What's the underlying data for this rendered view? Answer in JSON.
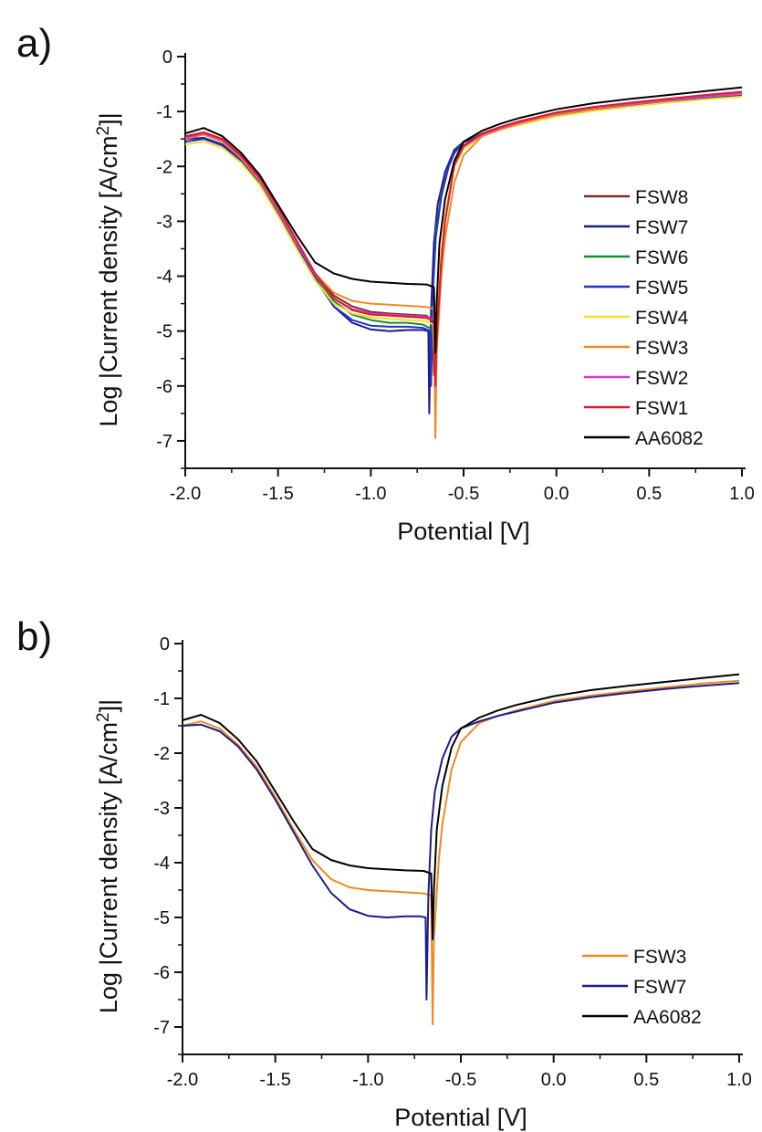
{
  "chart_data": [
    {
      "panel_label": "a)",
      "type": "line",
      "xlabel": "Potential [V]",
      "ylabel_prefix": "Log |Current density [A/cm",
      "ylabel_sup": "2",
      "ylabel_suffix": "]|",
      "xlim": [
        -2.0,
        1.0
      ],
      "ylim": [
        -7.5,
        0
      ],
      "x_ticks": [
        -2.0,
        -1.5,
        -1.0,
        -0.5,
        0.0,
        0.5,
        1.0
      ],
      "x_tick_labels": [
        "-2.0",
        "-1.5",
        "-1.0",
        "-0.5",
        "0.0",
        "0.5",
        "1.0"
      ],
      "y_ticks": [
        0,
        -1,
        -2,
        -3,
        -4,
        -5,
        -6,
        -7
      ],
      "y_tick_labels": [
        "0",
        "-1",
        "-2",
        "-3",
        "-4",
        "-5",
        "-6",
        "-7"
      ],
      "grid": false,
      "legend_position": "right",
      "series": [
        {
          "name": "FSW8",
          "color": "#7a2e2e",
          "x": [
            -2.0,
            -1.9,
            -1.8,
            -1.7,
            -1.6,
            -1.5,
            -1.4,
            -1.3,
            -1.2,
            -1.1,
            -1.0,
            -0.9,
            -0.8,
            -0.7,
            -0.668,
            -0.66,
            -0.65,
            -0.62,
            -0.6,
            -0.55,
            -0.5,
            -0.4,
            -0.3,
            -0.2,
            0.0,
            0.2,
            0.4,
            0.6,
            0.8,
            1.0
          ],
          "y": [
            -1.45,
            -1.38,
            -1.5,
            -1.8,
            -2.2,
            -2.75,
            -3.35,
            -3.95,
            -4.35,
            -4.55,
            -4.65,
            -4.68,
            -4.7,
            -4.72,
            -4.8,
            -5.8,
            -5.5,
            -3.8,
            -3.0,
            -1.95,
            -1.62,
            -1.4,
            -1.28,
            -1.18,
            -1.02,
            -0.92,
            -0.85,
            -0.78,
            -0.72,
            -0.66
          ]
        },
        {
          "name": "FSW7",
          "color": "#1c1c8a",
          "x": [
            -2.0,
            -1.9,
            -1.8,
            -1.7,
            -1.6,
            -1.5,
            -1.4,
            -1.3,
            -1.2,
            -1.1,
            -1.0,
            -0.9,
            -0.8,
            -0.72,
            -0.69,
            -0.685,
            -0.675,
            -0.66,
            -0.64,
            -0.6,
            -0.55,
            -0.5,
            -0.4,
            -0.3,
            -0.2,
            0.0,
            0.2,
            0.4,
            0.6,
            0.8,
            1.0
          ],
          "y": [
            -1.5,
            -1.48,
            -1.6,
            -1.88,
            -2.3,
            -2.85,
            -3.45,
            -4.05,
            -4.55,
            -4.85,
            -4.97,
            -5.0,
            -4.98,
            -4.98,
            -5.0,
            -6.5,
            -4.6,
            -3.4,
            -2.7,
            -2.1,
            -1.7,
            -1.55,
            -1.42,
            -1.32,
            -1.24,
            -1.08,
            -0.98,
            -0.9,
            -0.83,
            -0.77,
            -0.72
          ]
        },
        {
          "name": "FSW6",
          "color": "#1f8a2a",
          "x": [
            -2.0,
            -1.9,
            -1.8,
            -1.7,
            -1.6,
            -1.5,
            -1.4,
            -1.3,
            -1.2,
            -1.1,
            -1.0,
            -0.9,
            -0.8,
            -0.72,
            -0.68,
            -0.675,
            -0.67,
            -0.65,
            -0.62,
            -0.58,
            -0.55,
            -0.5,
            -0.4,
            -0.3,
            -0.2,
            0.0,
            0.2,
            0.4,
            0.6,
            0.8,
            1.0
          ],
          "y": [
            -1.48,
            -1.42,
            -1.55,
            -1.84,
            -2.25,
            -2.8,
            -3.4,
            -4.0,
            -4.45,
            -4.7,
            -4.8,
            -4.85,
            -4.85,
            -4.88,
            -4.95,
            -5.95,
            -4.6,
            -3.2,
            -2.5,
            -2.0,
            -1.75,
            -1.55,
            -1.4,
            -1.3,
            -1.22,
            -1.06,
            -0.96,
            -0.88,
            -0.81,
            -0.75,
            -0.7
          ]
        },
        {
          "name": "FSW5",
          "color": "#2330c8",
          "x": [
            -2.0,
            -1.9,
            -1.8,
            -1.7,
            -1.6,
            -1.5,
            -1.4,
            -1.3,
            -1.2,
            -1.1,
            -1.0,
            -0.9,
            -0.8,
            -0.72,
            -0.68,
            -0.675,
            -0.67,
            -0.65,
            -0.62,
            -0.58,
            -0.55,
            -0.5,
            -0.4,
            -0.3,
            -0.2,
            0.0,
            0.2,
            0.4,
            0.6,
            0.8,
            1.0
          ],
          "y": [
            -1.55,
            -1.5,
            -1.62,
            -1.9,
            -2.3,
            -2.85,
            -3.45,
            -4.05,
            -4.55,
            -4.8,
            -4.9,
            -4.92,
            -4.92,
            -4.94,
            -5.0,
            -6.0,
            -4.6,
            -3.3,
            -2.55,
            -2.0,
            -1.76,
            -1.56,
            -1.42,
            -1.32,
            -1.24,
            -1.08,
            -0.98,
            -0.9,
            -0.83,
            -0.77,
            -0.72
          ]
        },
        {
          "name": "FSW4",
          "color": "#f2e02a",
          "x": [
            -2.0,
            -1.9,
            -1.8,
            -1.7,
            -1.6,
            -1.5,
            -1.4,
            -1.3,
            -1.2,
            -1.1,
            -1.0,
            -0.9,
            -0.8,
            -0.7,
            -0.665,
            -0.655,
            -0.645,
            -0.62,
            -0.6,
            -0.55,
            -0.5,
            -0.4,
            -0.3,
            -0.2,
            0.0,
            0.2,
            0.4,
            0.6,
            0.8,
            1.0
          ],
          "y": [
            -1.6,
            -1.55,
            -1.66,
            -1.93,
            -2.33,
            -2.9,
            -3.5,
            -4.08,
            -4.5,
            -4.68,
            -4.75,
            -4.78,
            -4.8,
            -4.82,
            -4.88,
            -5.6,
            -5.0,
            -3.6,
            -2.9,
            -2.0,
            -1.68,
            -1.45,
            -1.33,
            -1.24,
            -1.09,
            -0.99,
            -0.91,
            -0.84,
            -0.78,
            -0.73
          ]
        },
        {
          "name": "FSW3",
          "color": "#f08a20",
          "x": [
            -2.0,
            -1.9,
            -1.8,
            -1.7,
            -1.6,
            -1.5,
            -1.4,
            -1.3,
            -1.2,
            -1.1,
            -1.0,
            -0.9,
            -0.8,
            -0.7,
            -0.66,
            -0.652,
            -0.645,
            -0.62,
            -0.6,
            -0.55,
            -0.5,
            -0.4,
            -0.3,
            -0.2,
            0.0,
            0.2,
            0.4,
            0.6,
            0.8,
            1.0
          ],
          "y": [
            -1.5,
            -1.42,
            -1.55,
            -1.85,
            -2.25,
            -2.8,
            -3.4,
            -3.95,
            -4.3,
            -4.45,
            -4.5,
            -4.52,
            -4.54,
            -4.56,
            -4.6,
            -6.95,
            -5.4,
            -4.0,
            -3.3,
            -2.3,
            -1.8,
            -1.45,
            -1.32,
            -1.22,
            -1.05,
            -0.95,
            -0.87,
            -0.8,
            -0.73,
            -0.68
          ]
        },
        {
          "name": "FSW2",
          "color": "#d63ad0",
          "x": [
            -2.0,
            -1.9,
            -1.8,
            -1.7,
            -1.6,
            -1.5,
            -1.4,
            -1.3,
            -1.2,
            -1.1,
            -1.0,
            -0.9,
            -0.8,
            -0.7,
            -0.66,
            -0.652,
            -0.645,
            -0.62,
            -0.6,
            -0.55,
            -0.5,
            -0.4,
            -0.3,
            -0.2,
            0.0,
            0.2,
            0.4,
            0.6,
            0.8,
            1.0
          ],
          "y": [
            -1.48,
            -1.4,
            -1.52,
            -1.82,
            -2.22,
            -2.78,
            -3.38,
            -3.98,
            -4.4,
            -4.6,
            -4.68,
            -4.7,
            -4.72,
            -4.74,
            -4.8,
            -5.6,
            -5.1,
            -3.7,
            -3.0,
            -1.98,
            -1.64,
            -1.42,
            -1.3,
            -1.2,
            -1.03,
            -0.93,
            -0.86,
            -0.79,
            -0.73,
            -0.67
          ]
        },
        {
          "name": "FSW1",
          "color": "#e21b2a",
          "x": [
            -2.0,
            -1.9,
            -1.8,
            -1.7,
            -1.6,
            -1.5,
            -1.4,
            -1.3,
            -1.2,
            -1.1,
            -1.0,
            -0.9,
            -0.8,
            -0.7,
            -0.66,
            -0.652,
            -0.645,
            -0.62,
            -0.6,
            -0.55,
            -0.5,
            -0.4,
            -0.3,
            -0.2,
            0.0,
            0.2,
            0.4,
            0.6,
            0.8,
            1.0
          ],
          "y": [
            -1.46,
            -1.38,
            -1.5,
            -1.8,
            -2.2,
            -2.75,
            -3.35,
            -3.95,
            -4.4,
            -4.62,
            -4.7,
            -4.72,
            -4.74,
            -4.76,
            -4.82,
            -6.0,
            -5.2,
            -3.7,
            -3.0,
            -1.98,
            -1.63,
            -1.4,
            -1.28,
            -1.18,
            -1.02,
            -0.92,
            -0.84,
            -0.77,
            -0.7,
            -0.64
          ]
        },
        {
          "name": "AA6082",
          "color": "#000000",
          "x": [
            -2.0,
            -1.9,
            -1.8,
            -1.7,
            -1.6,
            -1.5,
            -1.4,
            -1.3,
            -1.2,
            -1.1,
            -1.0,
            -0.9,
            -0.8,
            -0.7,
            -0.66,
            -0.652,
            -0.645,
            -0.63,
            -0.6,
            -0.55,
            -0.5,
            -0.4,
            -0.3,
            -0.2,
            0.0,
            0.2,
            0.4,
            0.6,
            0.8,
            1.0
          ],
          "y": [
            -1.4,
            -1.3,
            -1.45,
            -1.75,
            -2.15,
            -2.7,
            -3.25,
            -3.75,
            -3.95,
            -4.05,
            -4.1,
            -4.12,
            -4.14,
            -4.15,
            -4.2,
            -5.4,
            -4.5,
            -3.4,
            -2.6,
            -1.9,
            -1.55,
            -1.35,
            -1.22,
            -1.12,
            -0.96,
            -0.85,
            -0.77,
            -0.7,
            -0.63,
            -0.56
          ]
        }
      ]
    },
    {
      "panel_label": "b)",
      "type": "line",
      "xlabel": "Potential [V]",
      "ylabel_prefix": "Log |Current density [A/cm",
      "ylabel_sup": "2",
      "ylabel_suffix": "]|",
      "xlim": [
        -2.0,
        1.0
      ],
      "ylim": [
        -7.5,
        0
      ],
      "x_ticks": [
        -2.0,
        -1.5,
        -1.0,
        -0.5,
        0.0,
        0.5,
        1.0
      ],
      "x_tick_labels": [
        "-2.0",
        "-1.5",
        "-1.0",
        "-0.5",
        "0.0",
        "0.5",
        "1.0"
      ],
      "y_ticks": [
        0,
        -1,
        -2,
        -3,
        -4,
        -5,
        -6,
        -7
      ],
      "y_tick_labels": [
        "0",
        "-1",
        "-2",
        "-3",
        "-4",
        "-5",
        "-6",
        "-7"
      ],
      "grid": false,
      "legend_position": "bottom-right",
      "series": [
        {
          "name": "FSW3",
          "color": "#f08a20",
          "x": [
            -2.0,
            -1.9,
            -1.8,
            -1.7,
            -1.6,
            -1.5,
            -1.4,
            -1.3,
            -1.2,
            -1.1,
            -1.0,
            -0.9,
            -0.8,
            -0.7,
            -0.66,
            -0.652,
            -0.645,
            -0.62,
            -0.6,
            -0.55,
            -0.5,
            -0.4,
            -0.3,
            -0.2,
            0.0,
            0.2,
            0.4,
            0.6,
            0.8,
            1.0
          ],
          "y": [
            -1.5,
            -1.42,
            -1.55,
            -1.85,
            -2.25,
            -2.8,
            -3.4,
            -3.95,
            -4.3,
            -4.45,
            -4.5,
            -4.52,
            -4.54,
            -4.56,
            -4.6,
            -6.95,
            -5.4,
            -4.0,
            -3.3,
            -2.3,
            -1.8,
            -1.45,
            -1.32,
            -1.22,
            -1.05,
            -0.95,
            -0.87,
            -0.8,
            -0.73,
            -0.68
          ]
        },
        {
          "name": "FSW7",
          "color": "#1c1c8a",
          "x": [
            -2.0,
            -1.9,
            -1.8,
            -1.7,
            -1.6,
            -1.5,
            -1.4,
            -1.3,
            -1.2,
            -1.1,
            -1.0,
            -0.9,
            -0.8,
            -0.72,
            -0.69,
            -0.685,
            -0.675,
            -0.66,
            -0.64,
            -0.6,
            -0.55,
            -0.5,
            -0.4,
            -0.3,
            -0.2,
            0.0,
            0.2,
            0.4,
            0.6,
            0.8,
            1.0
          ],
          "y": [
            -1.5,
            -1.48,
            -1.6,
            -1.88,
            -2.3,
            -2.85,
            -3.45,
            -4.05,
            -4.55,
            -4.85,
            -4.97,
            -5.0,
            -4.98,
            -4.98,
            -5.0,
            -6.5,
            -4.6,
            -3.4,
            -2.7,
            -2.1,
            -1.7,
            -1.55,
            -1.42,
            -1.32,
            -1.24,
            -1.08,
            -0.98,
            -0.9,
            -0.83,
            -0.77,
            -0.72
          ]
        },
        {
          "name": "AA6082",
          "color": "#000000",
          "x": [
            -2.0,
            -1.9,
            -1.8,
            -1.7,
            -1.6,
            -1.5,
            -1.4,
            -1.3,
            -1.2,
            -1.1,
            -1.0,
            -0.9,
            -0.8,
            -0.7,
            -0.66,
            -0.652,
            -0.645,
            -0.63,
            -0.6,
            -0.55,
            -0.5,
            -0.4,
            -0.3,
            -0.2,
            0.0,
            0.2,
            0.4,
            0.6,
            0.8,
            1.0
          ],
          "y": [
            -1.4,
            -1.3,
            -1.45,
            -1.75,
            -2.15,
            -2.7,
            -3.25,
            -3.75,
            -3.95,
            -4.05,
            -4.1,
            -4.12,
            -4.14,
            -4.15,
            -4.2,
            -5.4,
            -4.5,
            -3.4,
            -2.6,
            -1.9,
            -1.55,
            -1.35,
            -1.22,
            -1.12,
            -0.96,
            -0.85,
            -0.77,
            -0.7,
            -0.63,
            -0.56
          ]
        }
      ]
    }
  ]
}
